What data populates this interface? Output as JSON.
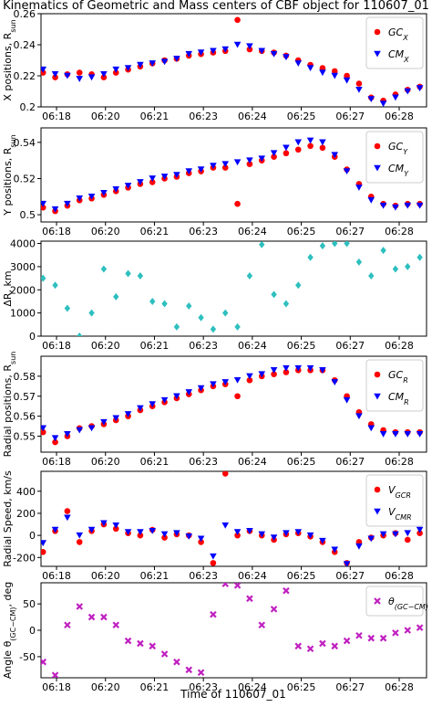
{
  "chart_data": [
    {
      "type": "scatter",
      "title": "Kinematics of Geometric and Mass centers of CBF object for 110607_01",
      "ylabel": "X positions, R_sun",
      "x": [
        17.8,
        18.16,
        18.52,
        18.88,
        19.24,
        19.6,
        19.96,
        20.32,
        20.68,
        21.04,
        21.4,
        21.76,
        22.12,
        22.48,
        22.84,
        23.2,
        23.56,
        23.92,
        24.28,
        24.64,
        25.0,
        25.36,
        25.72,
        26.08,
        26.44,
        26.8,
        27.16,
        27.52,
        27.88,
        28.24,
        28.6,
        28.96
      ],
      "xlim": [
        17.74,
        29.16
      ],
      "xticks": [
        {
          "value": 18.2,
          "label": "06:18"
        },
        {
          "value": 19.65,
          "label": "06:20"
        },
        {
          "value": 21.1,
          "label": "06:21"
        },
        {
          "value": 22.55,
          "label": "06:23"
        },
        {
          "value": 24.0,
          "label": "06:24"
        },
        {
          "value": 25.45,
          "label": "06:25"
        },
        {
          "value": 26.9,
          "label": "06:27"
        },
        {
          "value": 28.35,
          "label": "06:28"
        }
      ],
      "ylim": [
        0.2,
        0.26
      ],
      "yticks": [
        0.2,
        0.22,
        0.24,
        0.26
      ],
      "legend": "upper right",
      "series": [
        {
          "name": "GC_X",
          "color": "#ff0000",
          "marker": "o",
          "values": [
            0.222,
            0.219,
            0.221,
            0.222,
            0.221,
            0.219,
            0.222,
            0.224,
            0.226,
            0.228,
            0.23,
            0.231,
            0.233,
            0.234,
            0.235,
            0.236,
            0.256,
            0.237,
            0.236,
            0.235,
            0.233,
            0.23,
            0.227,
            0.225,
            0.223,
            0.22,
            0.215,
            0.206,
            0.204,
            0.208,
            0.211,
            0.213
          ]
        },
        {
          "name": "CM_X",
          "color": "#0000ff",
          "marker": "v",
          "values": [
            0.224,
            0.221,
            0.22,
            0.218,
            0.219,
            0.221,
            0.224,
            0.225,
            0.227,
            0.228,
            0.229,
            0.231,
            0.234,
            0.235,
            0.236,
            0.237,
            0.24,
            0.239,
            0.236,
            0.234,
            0.232,
            0.228,
            0.225,
            0.222,
            0.22,
            0.217,
            0.211,
            0.205,
            0.202,
            0.206,
            0.21,
            0.212
          ]
        }
      ]
    },
    {
      "type": "scatter",
      "ylabel": "Y positions, R_sun",
      "x": [
        17.8,
        18.16,
        18.52,
        18.88,
        19.24,
        19.6,
        19.96,
        20.32,
        20.68,
        21.04,
        21.4,
        21.76,
        22.12,
        22.48,
        22.84,
        23.2,
        23.56,
        23.92,
        24.28,
        24.64,
        25.0,
        25.36,
        25.72,
        26.08,
        26.44,
        26.8,
        27.16,
        27.52,
        27.88,
        28.24,
        28.6,
        28.96
      ],
      "xlim": [
        17.74,
        29.16
      ],
      "xticks": [
        {
          "value": 18.2,
          "label": "06:18"
        },
        {
          "value": 19.65,
          "label": "06:20"
        },
        {
          "value": 21.1,
          "label": "06:21"
        },
        {
          "value": 22.55,
          "label": "06:23"
        },
        {
          "value": 24.0,
          "label": "06:24"
        },
        {
          "value": 25.45,
          "label": "06:25"
        },
        {
          "value": 26.9,
          "label": "06:27"
        },
        {
          "value": 28.35,
          "label": "06:28"
        }
      ],
      "ylim": [
        0.496,
        0.548
      ],
      "yticks": [
        0.5,
        0.52,
        0.54
      ],
      "legend": "upper right",
      "series": [
        {
          "name": "GC_Y",
          "color": "#ff0000",
          "marker": "o",
          "values": [
            0.504,
            0.502,
            0.505,
            0.508,
            0.509,
            0.511,
            0.513,
            0.515,
            0.517,
            0.518,
            0.52,
            0.521,
            0.523,
            0.524,
            0.526,
            0.526,
            0.506,
            0.528,
            0.53,
            0.532,
            0.534,
            0.536,
            0.538,
            0.537,
            0.532,
            0.525,
            0.517,
            0.51,
            0.506,
            0.505,
            0.506,
            0.506
          ]
        },
        {
          "name": "CM_Y",
          "color": "#0000ff",
          "marker": "v",
          "values": [
            0.506,
            0.503,
            0.506,
            0.509,
            0.51,
            0.512,
            0.514,
            0.516,
            0.518,
            0.52,
            0.521,
            0.522,
            0.524,
            0.525,
            0.527,
            0.528,
            0.529,
            0.53,
            0.531,
            0.534,
            0.537,
            0.54,
            0.541,
            0.54,
            0.533,
            0.524,
            0.515,
            0.508,
            0.505,
            0.504,
            0.505,
            0.505
          ]
        }
      ]
    },
    {
      "type": "scatter",
      "ylabel": "ΔR, km",
      "x": [
        17.8,
        18.16,
        18.52,
        18.88,
        19.24,
        19.6,
        19.96,
        20.32,
        20.68,
        21.04,
        21.4,
        21.76,
        22.12,
        22.48,
        22.84,
        23.2,
        23.56,
        23.92,
        24.28,
        24.64,
        25.0,
        25.36,
        25.72,
        26.08,
        26.44,
        26.8,
        27.16,
        27.52,
        27.88,
        28.24,
        28.6,
        28.96
      ],
      "xlim": [
        17.74,
        29.16
      ],
      "xticks": [
        {
          "value": 18.2,
          "label": "06:18"
        },
        {
          "value": 19.65,
          "label": "06:20"
        },
        {
          "value": 21.1,
          "label": "06:21"
        },
        {
          "value": 22.55,
          "label": "06:23"
        },
        {
          "value": 24.0,
          "label": "06:24"
        },
        {
          "value": 25.45,
          "label": "06:25"
        },
        {
          "value": 26.9,
          "label": "06:27"
        },
        {
          "value": 28.35,
          "label": "06:28"
        }
      ],
      "ylim": [
        0,
        4100
      ],
      "yticks": [
        0,
        1000,
        2000,
        3000,
        4000
      ],
      "series": [
        {
          "color": "#2ebfbf",
          "marker": "D",
          "values": [
            2500,
            2200,
            1200,
            0,
            1000,
            2900,
            1700,
            2700,
            2600,
            1500,
            1400,
            400,
            1300,
            800,
            300,
            1000,
            400,
            2600,
            3950,
            1800,
            1400,
            2200,
            3400,
            3900,
            4000,
            4000,
            3200,
            2600,
            3700,
            2900,
            3000,
            3400
          ]
        }
      ]
    },
    {
      "type": "scatter",
      "ylabel": "Radial positions, R_sun",
      "x": [
        17.8,
        18.16,
        18.52,
        18.88,
        19.24,
        19.6,
        19.96,
        20.32,
        20.68,
        21.04,
        21.4,
        21.76,
        22.12,
        22.48,
        22.84,
        23.2,
        23.56,
        23.92,
        24.28,
        24.64,
        25.0,
        25.36,
        25.72,
        26.08,
        26.44,
        26.8,
        27.16,
        27.52,
        27.88,
        28.24,
        28.6,
        28.96
      ],
      "xlim": [
        17.74,
        29.16
      ],
      "xticks": [
        {
          "value": 18.2,
          "label": "06:18"
        },
        {
          "value": 19.65,
          "label": "06:20"
        },
        {
          "value": 21.1,
          "label": "06:21"
        },
        {
          "value": 22.55,
          "label": "06:23"
        },
        {
          "value": 24.0,
          "label": "06:24"
        },
        {
          "value": 25.45,
          "label": "06:25"
        },
        {
          "value": 26.9,
          "label": "06:27"
        },
        {
          "value": 28.35,
          "label": "06:28"
        }
      ],
      "ylim": [
        0.542,
        0.59
      ],
      "yticks": [
        0.55,
        0.56,
        0.57,
        0.58
      ],
      "legend": "upper right",
      "series": [
        {
          "name": "GC_R",
          "color": "#ff0000",
          "marker": "o",
          "values": [
            0.552,
            0.547,
            0.55,
            0.554,
            0.555,
            0.556,
            0.558,
            0.56,
            0.563,
            0.565,
            0.567,
            0.569,
            0.571,
            0.573,
            0.575,
            0.576,
            0.57,
            0.578,
            0.58,
            0.581,
            0.582,
            0.583,
            0.583,
            0.583,
            0.578,
            0.57,
            0.562,
            0.556,
            0.553,
            0.552,
            0.552,
            0.552
          ]
        },
        {
          "name": "CM_R",
          "color": "#0000ff",
          "marker": "v",
          "values": [
            0.554,
            0.549,
            0.551,
            0.553,
            0.554,
            0.557,
            0.559,
            0.561,
            0.564,
            0.566,
            0.568,
            0.57,
            0.572,
            0.574,
            0.576,
            0.577,
            0.578,
            0.58,
            0.581,
            0.583,
            0.584,
            0.584,
            0.584,
            0.583,
            0.577,
            0.568,
            0.56,
            0.554,
            0.551,
            0.551,
            0.551,
            0.551
          ]
        }
      ]
    },
    {
      "type": "scatter",
      "ylabel": "Radial Speed, km/s",
      "x": [
        17.8,
        18.16,
        18.52,
        18.88,
        19.24,
        19.6,
        19.96,
        20.32,
        20.68,
        21.04,
        21.4,
        21.76,
        22.12,
        22.48,
        22.84,
        23.2,
        23.56,
        23.92,
        24.28,
        24.64,
        25.0,
        25.36,
        25.72,
        26.08,
        26.44,
        26.8,
        27.16,
        27.52,
        27.88,
        28.24,
        28.6,
        28.96
      ],
      "xlim": [
        17.74,
        29.16
      ],
      "xticks": [
        {
          "value": 18.2,
          "label": "06:18"
        },
        {
          "value": 19.65,
          "label": "06:20"
        },
        {
          "value": 21.1,
          "label": "06:21"
        },
        {
          "value": 22.55,
          "label": "06:23"
        },
        {
          "value": 24.0,
          "label": "06:24"
        },
        {
          "value": 25.45,
          "label": "06:25"
        },
        {
          "value": 26.9,
          "label": "06:27"
        },
        {
          "value": 28.35,
          "label": "06:28"
        }
      ],
      "ylim": [
        -280,
        580
      ],
      "yticks": [
        -200,
        0,
        200,
        400
      ],
      "legend": "upper right",
      "series": [
        {
          "name": "V_GCR",
          "color": "#ff0000",
          "marker": "o",
          "values": [
            -150,
            40,
            220,
            -60,
            40,
            100,
            60,
            20,
            0,
            50,
            -20,
            10,
            0,
            -60,
            -250,
            560,
            0,
            40,
            0,
            -40,
            10,
            20,
            -10,
            -60,
            -150,
            -250,
            -60,
            -20,
            0,
            20,
            -40,
            20
          ]
        },
        {
          "name": "V_CMR",
          "color": "#0000ff",
          "marker": "v",
          "values": [
            -70,
            50,
            160,
            0,
            50,
            110,
            90,
            30,
            30,
            40,
            10,
            20,
            -10,
            -30,
            -190,
            90,
            30,
            40,
            10,
            -20,
            20,
            30,
            0,
            -50,
            -130,
            -260,
            -100,
            -30,
            10,
            10,
            20,
            50
          ]
        }
      ]
    },
    {
      "type": "scatter",
      "ylabel": "Angle θ_(GC−CM), deg",
      "xlabel": "Time of 110607_01",
      "x": [
        17.8,
        18.16,
        18.52,
        18.88,
        19.24,
        19.6,
        19.96,
        20.32,
        20.68,
        21.04,
        21.4,
        21.76,
        22.12,
        22.48,
        22.84,
        23.2,
        23.56,
        23.92,
        24.28,
        24.64,
        25.0,
        25.36,
        25.72,
        26.08,
        26.44,
        26.8,
        27.16,
        27.52,
        27.88,
        28.24,
        28.6,
        28.96
      ],
      "xlim": [
        17.74,
        29.16
      ],
      "xticks": [
        {
          "value": 18.2,
          "label": "06:18"
        },
        {
          "value": 19.65,
          "label": "06:20"
        },
        {
          "value": 21.1,
          "label": "06:21"
        },
        {
          "value": 22.55,
          "label": "06:23"
        },
        {
          "value": 24.0,
          "label": "06:24"
        },
        {
          "value": 25.45,
          "label": "06:25"
        },
        {
          "value": 26.9,
          "label": "06:27"
        },
        {
          "value": 28.35,
          "label": "06:28"
        }
      ],
      "ylim": [
        -90,
        90
      ],
      "yticks": [
        -50,
        0,
        50
      ],
      "legend": "upper right",
      "series": [
        {
          "name": "θ_(GC−CM)",
          "color": "#c020c0",
          "marker": "X",
          "values": [
            -60,
            -85,
            10,
            45,
            25,
            25,
            10,
            -20,
            -25,
            -30,
            -45,
            -60,
            -75,
            -80,
            30,
            88,
            85,
            60,
            10,
            40,
            75,
            -30,
            -35,
            -25,
            -30,
            -20,
            -10,
            -15,
            -15,
            -5,
            0,
            5
          ]
        }
      ]
    }
  ]
}
